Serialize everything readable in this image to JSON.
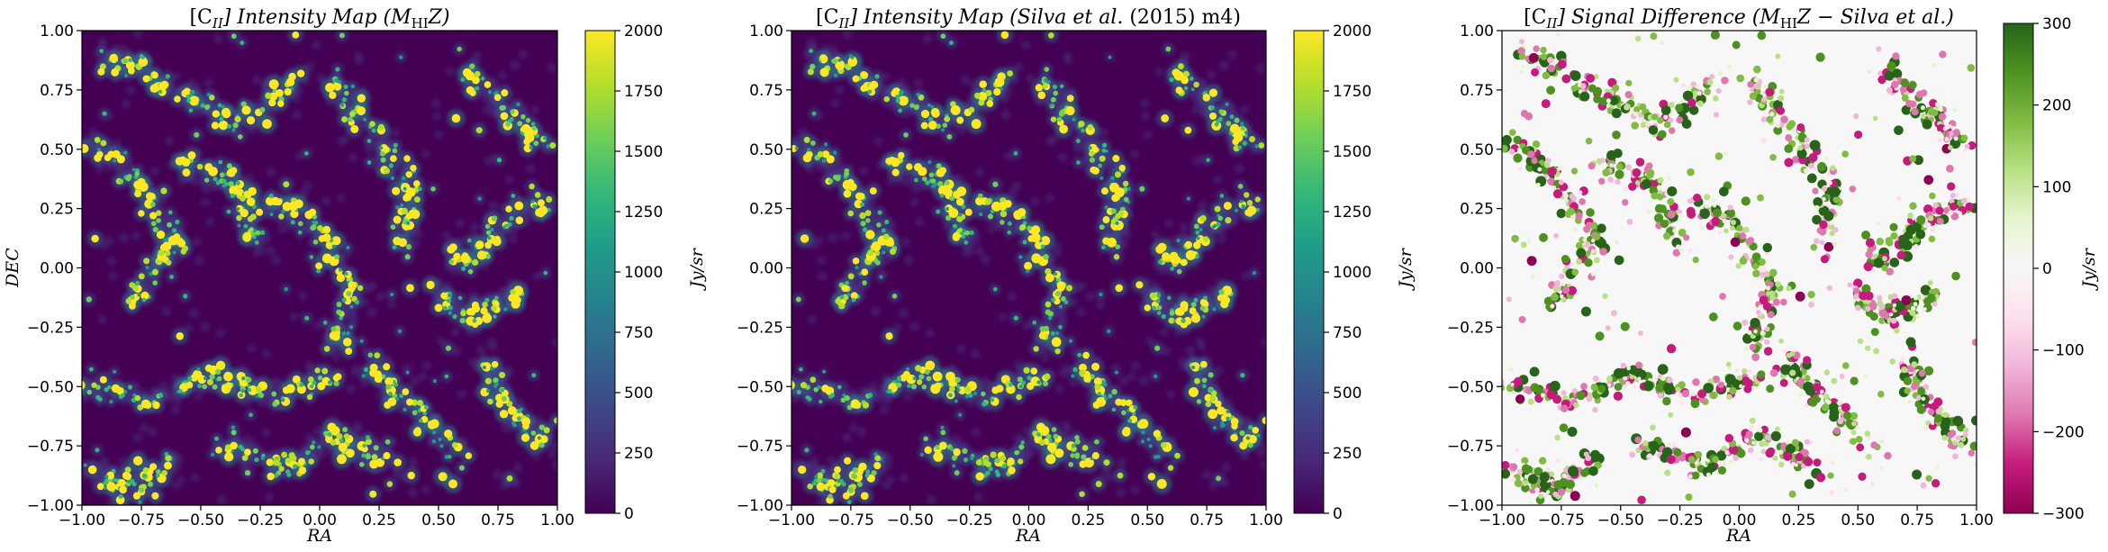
{
  "chart_data": [
    {
      "type": "heatmap",
      "title": "[C_II] Intensity Map (M_HI Z)",
      "title_parts": {
        "prefix": "[C",
        "sub1": "II",
        "mid": "] Intensity Map (M",
        "sub2": "HI",
        "suffix": "Z)"
      },
      "xlabel": "RA",
      "ylabel": "DEC",
      "xlim": [
        -1.0,
        1.0
      ],
      "ylim": [
        -1.0,
        1.0
      ],
      "x_ticks": [
        "−1.00",
        "−0.75",
        "−0.50",
        "−0.25",
        "0.00",
        "0.25",
        "0.50",
        "0.75",
        "1.00"
      ],
      "y_ticks": [
        "−1.00",
        "−0.75",
        "−0.50",
        "−0.25",
        "0.00",
        "0.25",
        "0.50",
        "0.75",
        "1.00"
      ],
      "colormap": "viridis",
      "colorbar": {
        "label": "Jy/sr",
        "range": [
          0,
          2000
        ],
        "ticks": [
          "0",
          "250",
          "500",
          "750",
          "1000",
          "1250",
          "1500",
          "1750",
          "2000"
        ]
      },
      "grid": false
    },
    {
      "type": "heatmap",
      "title": "[C_II] Intensity Map (Silva et al. (2015) m4)",
      "title_parts": {
        "prefix": "[C",
        "sub1": "II",
        "mid": "] Intensity Map (Silva et al.",
        "plain": " (2015) m4)"
      },
      "xlabel": "RA",
      "ylabel": "",
      "xlim": [
        -1.0,
        1.0
      ],
      "ylim": [
        -1.0,
        1.0
      ],
      "x_ticks": [
        "−1.00",
        "−0.75",
        "−0.50",
        "−0.25",
        "0.00",
        "0.25",
        "0.50",
        "0.75",
        "1.00"
      ],
      "y_ticks": [
        "−1.00",
        "−0.75",
        "−0.50",
        "−0.25",
        "0.00",
        "0.25",
        "0.50",
        "0.75",
        "1.00"
      ],
      "colormap": "viridis",
      "colorbar": {
        "label": "Jy/sr",
        "range": [
          0,
          2000
        ],
        "ticks": [
          "0",
          "250",
          "500",
          "750",
          "1000",
          "1250",
          "1500",
          "1750",
          "2000"
        ]
      },
      "grid": false
    },
    {
      "type": "heatmap",
      "title": "[C_II] Signal Difference (M_HI Z − Silva et al.)",
      "title_parts": {
        "prefix": "[C",
        "sub1": "II",
        "mid": "] Signal Difference (M",
        "sub2": "HI",
        "suffix": "Z  −  Silva et al.)"
      },
      "xlabel": "RA",
      "ylabel": "",
      "xlim": [
        -1.0,
        1.0
      ],
      "ylim": [
        -1.0,
        1.0
      ],
      "x_ticks": [
        "−1.00",
        "−0.75",
        "−0.50",
        "−0.25",
        "0.00",
        "0.25",
        "0.50",
        "0.75",
        "1.00"
      ],
      "y_ticks": [
        "−1.00",
        "−0.75",
        "−0.50",
        "−0.25",
        "0.00",
        "0.25",
        "0.50",
        "0.75",
        "1.00"
      ],
      "colormap": "PiYG",
      "colorbar": {
        "label": "Jy/sr",
        "range": [
          -300,
          300
        ],
        "ticks": [
          "−300",
          "−200",
          "−100",
          "0",
          "100",
          "200",
          "300"
        ]
      },
      "grid": false
    }
  ],
  "colors": {
    "viridis": [
      "#440154",
      "#482878",
      "#3e4989",
      "#31688e",
      "#26828e",
      "#1f9e89",
      "#35b779",
      "#6ece58",
      "#b5de2b",
      "#fde725"
    ],
    "piyg": [
      "#8e0152",
      "#c51b7d",
      "#de77ae",
      "#f1b6da",
      "#fde0ef",
      "#f7f7f7",
      "#e6f5d0",
      "#b8e186",
      "#7fbc41",
      "#4d9221",
      "#276419"
    ]
  }
}
